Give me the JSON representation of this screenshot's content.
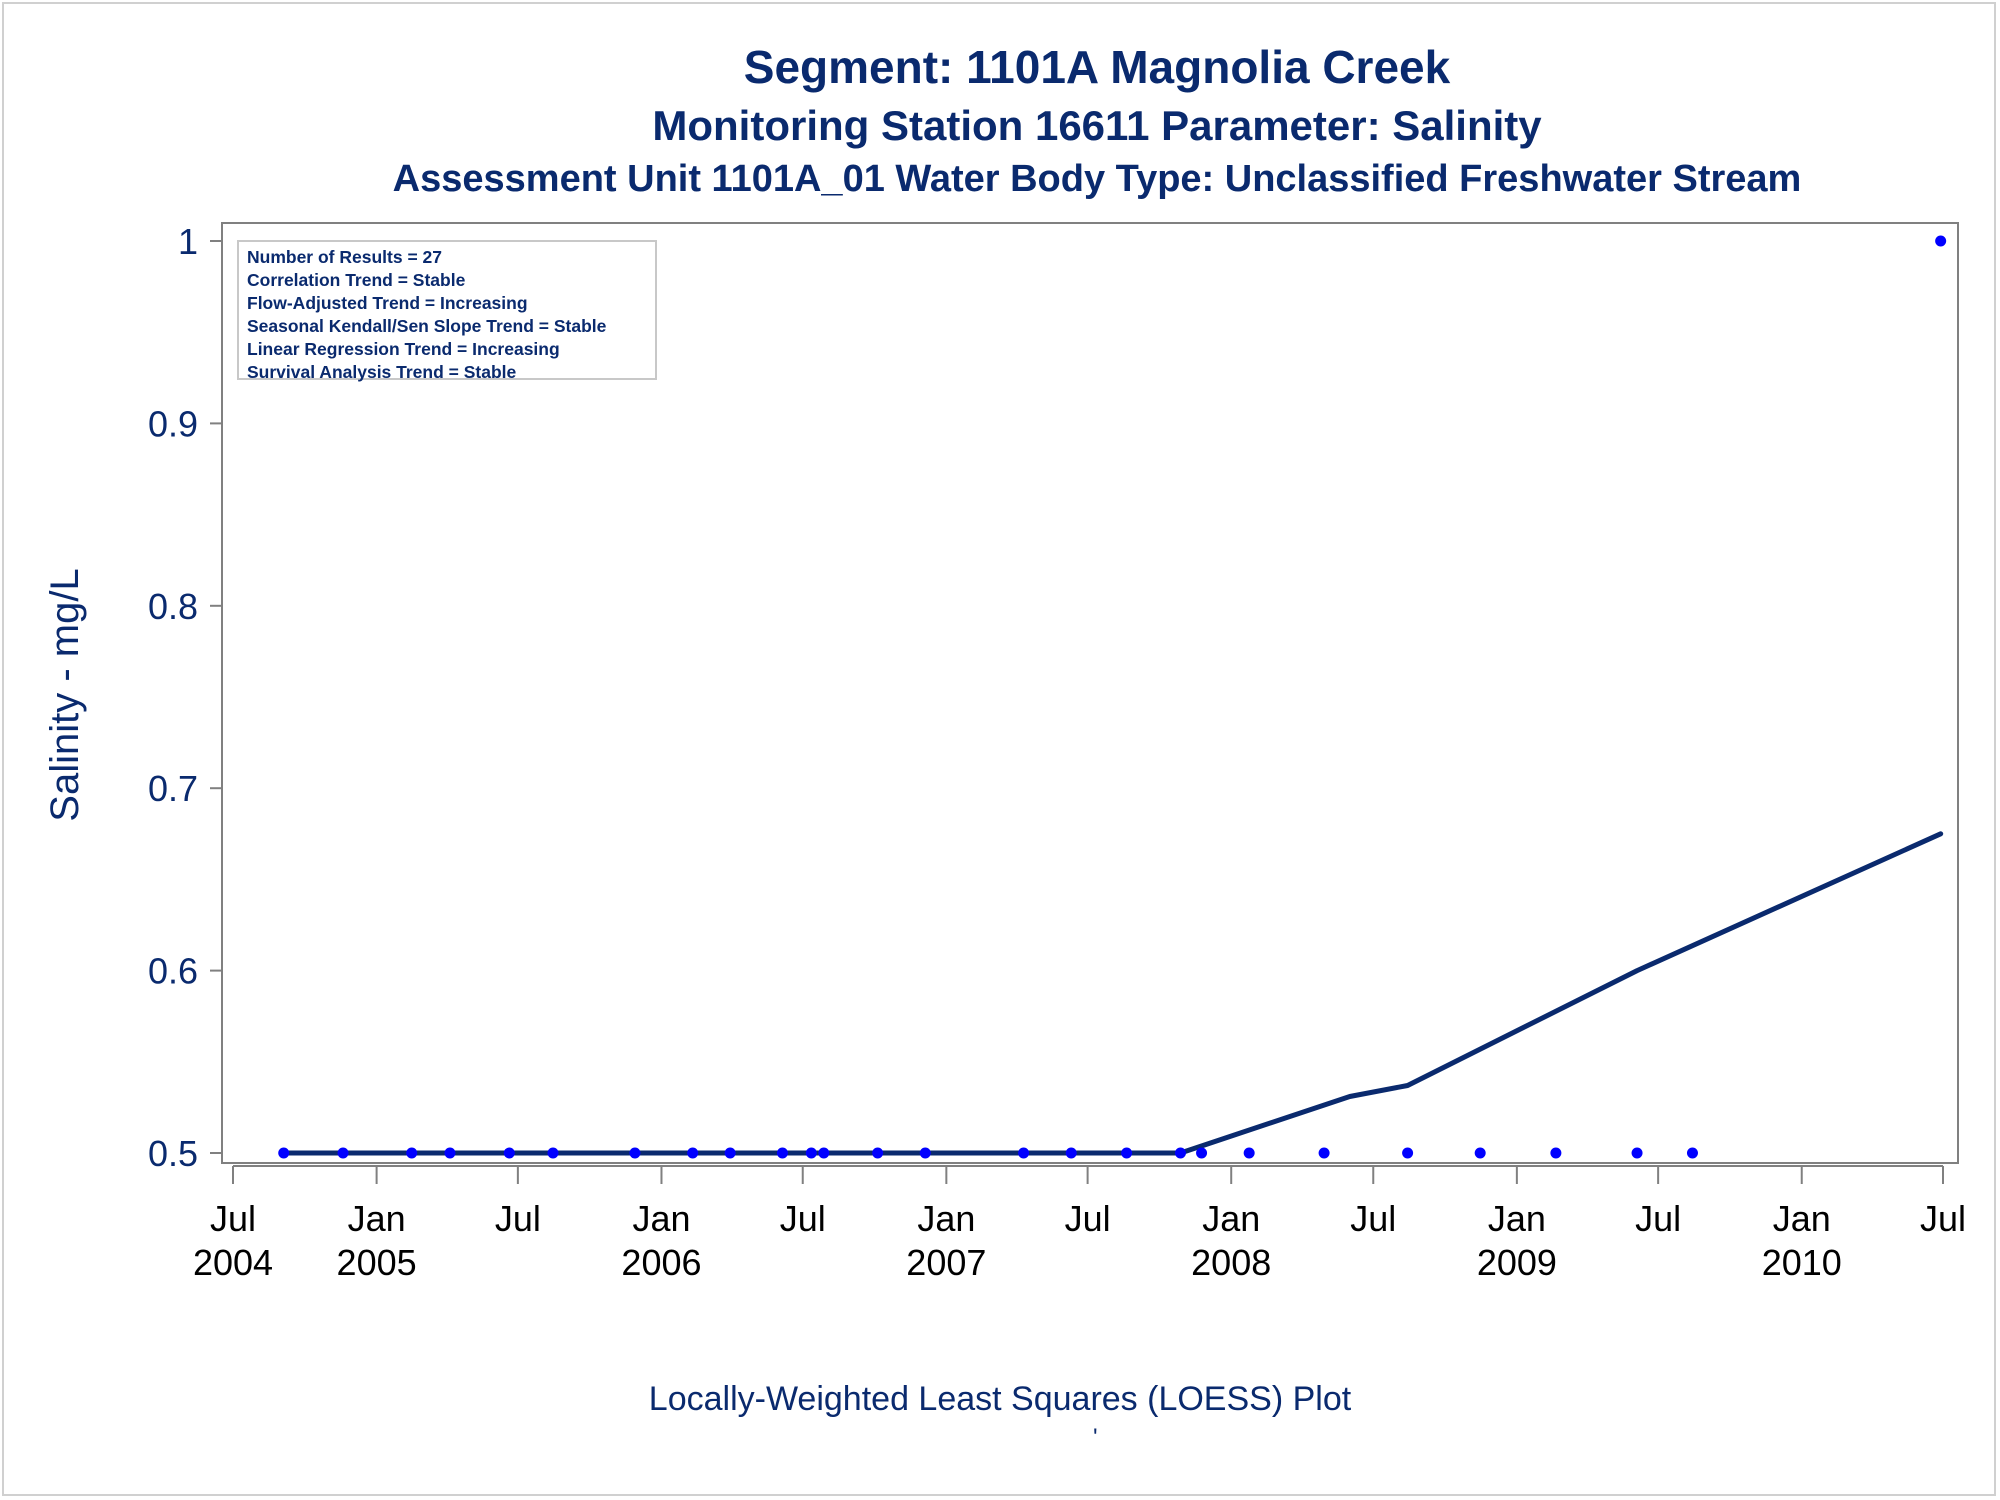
{
  "titles": {
    "line1": "Segment: 1101A  Magnolia Creek",
    "line2": "Monitoring Station 16611 Parameter: Salinity",
    "line3": "Assessment Unit 1101A_01   Water Body Type: Unclassified Freshwater Stream"
  },
  "stats": [
    "Number of Results = 27",
    "Correlation Trend = Stable",
    "Flow-Adjusted Trend = Increasing",
    "Seasonal Kendall/Sen Slope Trend = Stable",
    "Linear Regression Trend = Increasing",
    "Survival Analysis Trend = Stable"
  ],
  "footnote": "Locally-Weighted Least Squares (LOESS) Plot",
  "footmark": "'",
  "colors": {
    "text": "#0a2a6e",
    "points": "#0000ff",
    "loess_line": "#0a2a6e",
    "axis": "#808080"
  },
  "chart_data": {
    "type": "scatter",
    "title": "Segment: 1101A  Magnolia Creek",
    "ylabel": "Salinity - mg/L",
    "xlabel": "",
    "ylim": [
      0.49,
      1.01
    ],
    "xlim": [
      "2004-07-01",
      "2010-07-01"
    ],
    "y_ticks": [
      {
        "value": 0.5,
        "label": "0.5"
      },
      {
        "value": 0.6,
        "label": "0.6"
      },
      {
        "value": 0.7,
        "label": "0.7"
      },
      {
        "value": 0.8,
        "label": "0.8"
      },
      {
        "value": 0.9,
        "label": "0.9"
      },
      {
        "value": 1.0,
        "label": "1"
      }
    ],
    "x_ticks": [
      {
        "date": "2004-07-01",
        "line1": "Jul",
        "line2": "2004"
      },
      {
        "date": "2005-01-01",
        "line1": "Jan",
        "line2": "2005"
      },
      {
        "date": "2005-07-01",
        "line1": "Jul",
        "line2": ""
      },
      {
        "date": "2006-01-01",
        "line1": "Jan",
        "line2": "2006"
      },
      {
        "date": "2006-07-01",
        "line1": "Jul",
        "line2": ""
      },
      {
        "date": "2007-01-01",
        "line1": "Jan",
        "line2": "2007"
      },
      {
        "date": "2007-07-01",
        "line1": "Jul",
        "line2": ""
      },
      {
        "date": "2008-01-01",
        "line1": "Jan",
        "line2": "2008"
      },
      {
        "date": "2008-07-01",
        "line1": "Jul",
        "line2": ""
      },
      {
        "date": "2009-01-01",
        "line1": "Jan",
        "line2": "2009"
      },
      {
        "date": "2009-07-01",
        "line1": "Jul",
        "line2": ""
      },
      {
        "date": "2010-01-01",
        "line1": "Jan",
        "line2": "2010"
      },
      {
        "date": "2010-07-01",
        "line1": "Jul",
        "line2": ""
      }
    ],
    "series": [
      {
        "type": "scatter",
        "x": [
          "2004-09-04",
          "2004-11-19",
          "2005-02-15",
          "2005-04-05",
          "2005-06-20",
          "2005-08-15",
          "2005-11-28",
          "2006-02-10",
          "2006-03-30",
          "2006-06-05",
          "2006-07-12",
          "2006-07-28",
          "2006-10-05",
          "2006-12-05",
          "2007-04-10",
          "2007-06-10",
          "2007-08-20",
          "2007-10-28",
          "2007-11-24",
          "2008-01-24",
          "2008-04-29",
          "2008-08-14",
          "2008-11-15",
          "2009-02-20",
          "2009-06-04",
          "2009-08-14",
          "2010-06-28"
        ],
        "y": [
          0.5,
          0.5,
          0.5,
          0.5,
          0.5,
          0.5,
          0.5,
          0.5,
          0.5,
          0.5,
          0.5,
          0.5,
          0.5,
          0.5,
          0.5,
          0.5,
          0.5,
          0.5,
          0.5,
          0.5,
          0.5,
          0.5,
          0.5,
          0.5,
          0.5,
          0.5,
          1.0
        ]
      },
      {
        "type": "line",
        "x": [
          "2004-09-04",
          "2005-06-01",
          "2006-03-01",
          "2006-12-01",
          "2007-10-28",
          "2008-06-01",
          "2008-08-14",
          "2009-06-04",
          "2010-06-28"
        ],
        "y": [
          0.5,
          0.5,
          0.5,
          0.5,
          0.5,
          0.531,
          0.537,
          0.6,
          0.675
        ]
      }
    ],
    "grid": false,
    "legend": "top-left"
  }
}
